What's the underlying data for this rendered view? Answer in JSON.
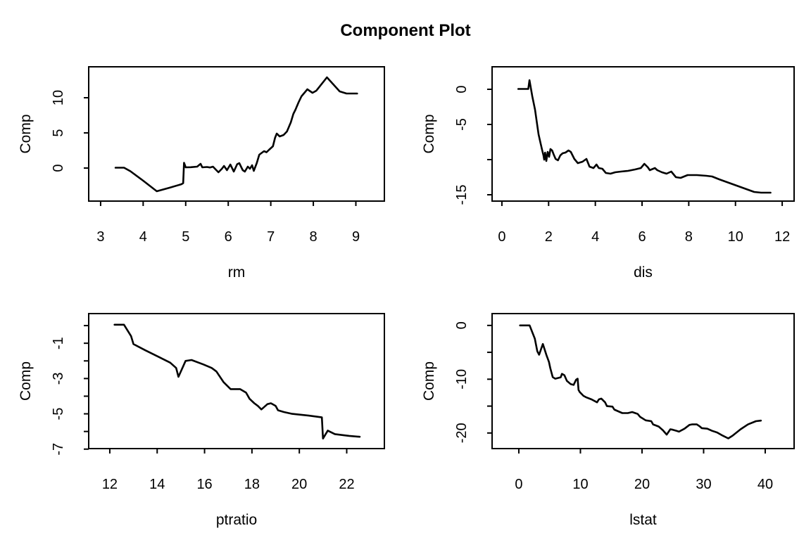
{
  "title": "Component Plot",
  "colors": {
    "line": "#000000",
    "background": "#ffffff",
    "text": "#000000"
  },
  "chart_data": [
    {
      "type": "line",
      "name": "rm",
      "xlabel": "rm",
      "ylabel": "Comp",
      "xlim": [
        2.72,
        9.67
      ],
      "ylim": [
        -4.7,
        14.4
      ],
      "grid": false,
      "xticks": [
        [
          3,
          "3"
        ],
        [
          4,
          "4"
        ],
        [
          5,
          "5"
        ],
        [
          6,
          "6"
        ],
        [
          7,
          "7"
        ],
        [
          8,
          "8"
        ],
        [
          9,
          "9"
        ]
      ],
      "yticks": [
        [
          0,
          "0"
        ],
        [
          5,
          "5"
        ],
        [
          10,
          "10"
        ]
      ],
      "points": [
        [
          3.35,
          0.05
        ],
        [
          3.55,
          0.05
        ],
        [
          3.7,
          -0.45
        ],
        [
          4.0,
          -1.8
        ],
        [
          4.32,
          -3.3
        ],
        [
          4.62,
          -2.8
        ],
        [
          4.9,
          -2.3
        ],
        [
          4.94,
          -2.15
        ],
        [
          4.96,
          0.75
        ],
        [
          5.0,
          0.1
        ],
        [
          5.12,
          0.12
        ],
        [
          5.27,
          0.2
        ],
        [
          5.35,
          0.6
        ],
        [
          5.39,
          0.1
        ],
        [
          5.5,
          0.15
        ],
        [
          5.57,
          0.08
        ],
        [
          5.64,
          0.2
        ],
        [
          5.72,
          -0.3
        ],
        [
          5.77,
          -0.6
        ],
        [
          5.85,
          -0.1
        ],
        [
          5.9,
          0.3
        ],
        [
          5.97,
          -0.3
        ],
        [
          6.05,
          0.5
        ],
        [
          6.13,
          -0.5
        ],
        [
          6.21,
          0.55
        ],
        [
          6.26,
          0.7
        ],
        [
          6.34,
          -0.3
        ],
        [
          6.39,
          -0.5
        ],
        [
          6.46,
          0.2
        ],
        [
          6.51,
          -0.1
        ],
        [
          6.56,
          0.4
        ],
        [
          6.6,
          -0.4
        ],
        [
          6.67,
          0.7
        ],
        [
          6.73,
          1.9
        ],
        [
          6.84,
          2.4
        ],
        [
          6.9,
          2.25
        ],
        [
          6.96,
          2.6
        ],
        [
          7.05,
          3.1
        ],
        [
          7.1,
          4.3
        ],
        [
          7.14,
          4.9
        ],
        [
          7.21,
          4.5
        ],
        [
          7.3,
          4.7
        ],
        [
          7.38,
          5.2
        ],
        [
          7.47,
          6.5
        ],
        [
          7.53,
          7.7
        ],
        [
          7.58,
          8.3
        ],
        [
          7.65,
          9.3
        ],
        [
          7.72,
          10.2
        ],
        [
          7.86,
          11.2
        ],
        [
          7.98,
          10.7
        ],
        [
          8.07,
          11.0
        ],
        [
          8.32,
          12.9
        ],
        [
          8.62,
          10.9
        ],
        [
          8.78,
          10.6
        ],
        [
          9.03,
          10.6
        ]
      ]
    },
    {
      "type": "line",
      "name": "dis",
      "xlabel": "dis",
      "ylabel": "Comp",
      "xlim": [
        -0.42,
        12.51
      ],
      "ylim": [
        -15.9,
        3.2
      ],
      "grid": false,
      "xticks": [
        [
          0,
          "0"
        ],
        [
          2,
          "2"
        ],
        [
          4,
          "4"
        ],
        [
          6,
          "6"
        ],
        [
          8,
          "8"
        ],
        [
          10,
          "10"
        ],
        [
          12,
          "12"
        ]
      ],
      "yticks": [
        [
          0,
          "0"
        ],
        [
          -5,
          "-5"
        ],
        [
          -10,
          ""
        ],
        [
          -15,
          "-15"
        ]
      ],
      "points": [
        [
          0.7,
          0.05
        ],
        [
          1.13,
          0.05
        ],
        [
          1.18,
          1.3
        ],
        [
          1.3,
          -1.0
        ],
        [
          1.42,
          -2.9
        ],
        [
          1.5,
          -4.8
        ],
        [
          1.57,
          -6.4
        ],
        [
          1.65,
          -7.6
        ],
        [
          1.72,
          -8.6
        ],
        [
          1.78,
          -9.4
        ],
        [
          1.81,
          -10.0
        ],
        [
          1.85,
          -9.0
        ],
        [
          1.9,
          -10.2
        ],
        [
          1.96,
          -8.9
        ],
        [
          2.02,
          -9.6
        ],
        [
          2.08,
          -8.5
        ],
        [
          2.15,
          -8.7
        ],
        [
          2.22,
          -9.3
        ],
        [
          2.3,
          -9.9
        ],
        [
          2.4,
          -10.1
        ],
        [
          2.5,
          -9.4
        ],
        [
          2.6,
          -9.1
        ],
        [
          2.72,
          -9.0
        ],
        [
          2.85,
          -8.7
        ],
        [
          2.95,
          -8.9
        ],
        [
          3.1,
          -9.9
        ],
        [
          3.25,
          -10.5
        ],
        [
          3.45,
          -10.3
        ],
        [
          3.62,
          -9.9
        ],
        [
          3.75,
          -11.0
        ],
        [
          3.92,
          -11.2
        ],
        [
          4.05,
          -10.7
        ],
        [
          4.15,
          -11.2
        ],
        [
          4.3,
          -11.3
        ],
        [
          4.45,
          -11.9
        ],
        [
          4.65,
          -12.0
        ],
        [
          4.85,
          -11.8
        ],
        [
          5.1,
          -11.7
        ],
        [
          5.4,
          -11.6
        ],
        [
          5.7,
          -11.4
        ],
        [
          5.95,
          -11.2
        ],
        [
          6.1,
          -10.6
        ],
        [
          6.25,
          -11.1
        ],
        [
          6.33,
          -11.5
        ],
        [
          6.55,
          -11.2
        ],
        [
          6.65,
          -11.5
        ],
        [
          6.85,
          -11.8
        ],
        [
          7.05,
          -12.0
        ],
        [
          7.25,
          -11.7
        ],
        [
          7.45,
          -12.5
        ],
        [
          7.65,
          -12.6
        ],
        [
          7.95,
          -12.2
        ],
        [
          8.35,
          -12.2
        ],
        [
          8.75,
          -12.3
        ],
        [
          9.0,
          -12.4
        ],
        [
          9.3,
          -12.8
        ],
        [
          9.8,
          -13.4
        ],
        [
          10.3,
          -14.0
        ],
        [
          10.8,
          -14.6
        ],
        [
          11.1,
          -14.7
        ],
        [
          11.5,
          -14.7
        ]
      ]
    },
    {
      "type": "line",
      "name": "ptratio",
      "xlabel": "ptratio",
      "ylabel": "Comp",
      "xlim": [
        11.11,
        23.59
      ],
      "ylim": [
        -6.97,
        0.68
      ],
      "grid": false,
      "xticks": [
        [
          12,
          "12"
        ],
        [
          14,
          "14"
        ],
        [
          16,
          "16"
        ],
        [
          18,
          "18"
        ],
        [
          20,
          "20"
        ],
        [
          22,
          "22"
        ]
      ],
      "yticks": [
        [
          0,
          ""
        ],
        [
          -1,
          "-1"
        ],
        [
          -2,
          ""
        ],
        [
          -3,
          "-3"
        ],
        [
          -4,
          ""
        ],
        [
          -5,
          "-5"
        ],
        [
          -6,
          ""
        ],
        [
          -7,
          "-7"
        ]
      ],
      "points": [
        [
          12.2,
          0.05
        ],
        [
          12.6,
          0.05
        ],
        [
          12.9,
          -0.6
        ],
        [
          13.0,
          -1.05
        ],
        [
          13.5,
          -1.4
        ],
        [
          14.1,
          -1.8
        ],
        [
          14.55,
          -2.1
        ],
        [
          14.8,
          -2.4
        ],
        [
          14.9,
          -2.9
        ],
        [
          15.2,
          -2.0
        ],
        [
          15.45,
          -1.95
        ],
        [
          15.95,
          -2.2
        ],
        [
          16.3,
          -2.4
        ],
        [
          16.5,
          -2.6
        ],
        [
          16.8,
          -3.2
        ],
        [
          17.1,
          -3.6
        ],
        [
          17.5,
          -3.6
        ],
        [
          17.75,
          -3.8
        ],
        [
          17.9,
          -4.15
        ],
        [
          18.1,
          -4.4
        ],
        [
          18.25,
          -4.55
        ],
        [
          18.4,
          -4.75
        ],
        [
          18.65,
          -4.45
        ],
        [
          18.8,
          -4.4
        ],
        [
          19.0,
          -4.55
        ],
        [
          19.1,
          -4.8
        ],
        [
          19.35,
          -4.9
        ],
        [
          19.7,
          -5.0
        ],
        [
          20.4,
          -5.1
        ],
        [
          20.95,
          -5.2
        ],
        [
          21.0,
          -6.4
        ],
        [
          21.2,
          -5.95
        ],
        [
          21.5,
          -6.15
        ],
        [
          22.1,
          -6.25
        ],
        [
          22.55,
          -6.3
        ]
      ]
    },
    {
      "type": "line",
      "name": "lstat",
      "xlabel": "lstat",
      "ylabel": "Comp",
      "xlim": [
        -4.34,
        44.69
      ],
      "ylim": [
        -22.9,
        2.2
      ],
      "grid": false,
      "xticks": [
        [
          0,
          "0"
        ],
        [
          10,
          "10"
        ],
        [
          20,
          "20"
        ],
        [
          30,
          "30"
        ],
        [
          40,
          "40"
        ]
      ],
      "yticks": [
        [
          0,
          "0"
        ],
        [
          -5,
          ""
        ],
        [
          -10,
          "-10"
        ],
        [
          -15,
          ""
        ],
        [
          -20,
          "-20"
        ]
      ],
      "points": [
        [
          0.2,
          0.0
        ],
        [
          1.75,
          0.0
        ],
        [
          2.6,
          -2.45
        ],
        [
          3.0,
          -4.8
        ],
        [
          3.3,
          -5.45
        ],
        [
          3.9,
          -3.45
        ],
        [
          4.5,
          -5.55
        ],
        [
          4.9,
          -6.8
        ],
        [
          5.1,
          -7.9
        ],
        [
          5.5,
          -9.6
        ],
        [
          5.9,
          -9.9
        ],
        [
          6.8,
          -9.65
        ],
        [
          7.0,
          -9.0
        ],
        [
          7.4,
          -9.25
        ],
        [
          7.8,
          -10.3
        ],
        [
          8.4,
          -10.9
        ],
        [
          8.9,
          -11.05
        ],
        [
          9.3,
          -10.1
        ],
        [
          9.55,
          -9.9
        ],
        [
          9.7,
          -12.0
        ],
        [
          9.9,
          -12.4
        ],
        [
          10.5,
          -13.1
        ],
        [
          10.9,
          -13.35
        ],
        [
          11.8,
          -13.75
        ],
        [
          12.7,
          -14.3
        ],
        [
          13.0,
          -13.75
        ],
        [
          13.4,
          -13.6
        ],
        [
          14.0,
          -14.3
        ],
        [
          14.3,
          -15.0
        ],
        [
          15.2,
          -15.1
        ],
        [
          15.5,
          -15.65
        ],
        [
          16.4,
          -16.1
        ],
        [
          16.8,
          -16.3
        ],
        [
          17.7,
          -16.3
        ],
        [
          18.4,
          -16.1
        ],
        [
          18.9,
          -16.3
        ],
        [
          19.3,
          -16.45
        ],
        [
          19.7,
          -17.0
        ],
        [
          20.6,
          -17.65
        ],
        [
          21.5,
          -17.8
        ],
        [
          21.8,
          -18.4
        ],
        [
          22.7,
          -18.8
        ],
        [
          23.1,
          -19.2
        ],
        [
          23.4,
          -19.5
        ],
        [
          24.0,
          -20.3
        ],
        [
          24.6,
          -19.3
        ],
        [
          25.0,
          -19.4
        ],
        [
          25.6,
          -19.6
        ],
        [
          26.0,
          -19.75
        ],
        [
          26.9,
          -19.2
        ],
        [
          27.7,
          -18.5
        ],
        [
          28.1,
          -18.4
        ],
        [
          28.9,
          -18.4
        ],
        [
          29.4,
          -18.8
        ],
        [
          29.7,
          -19.1
        ],
        [
          30.6,
          -19.2
        ],
        [
          31.4,
          -19.6
        ],
        [
          32.2,
          -19.9
        ],
        [
          33.1,
          -20.5
        ],
        [
          34.0,
          -21.0
        ],
        [
          34.7,
          -20.5
        ],
        [
          36.0,
          -19.3
        ],
        [
          37.2,
          -18.4
        ],
        [
          38.5,
          -17.8
        ],
        [
          39.3,
          -17.7
        ]
      ]
    }
  ]
}
